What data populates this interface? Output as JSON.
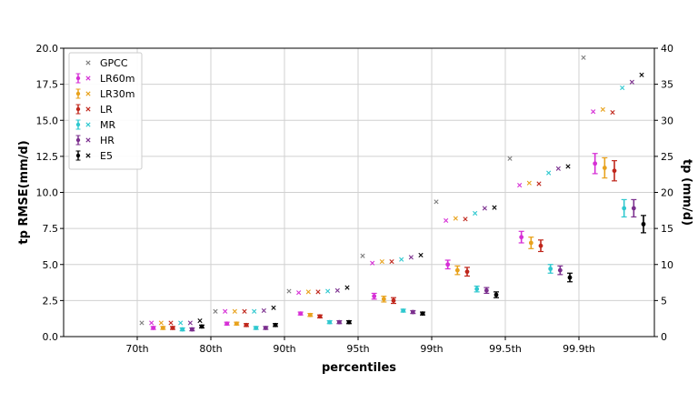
{
  "chart_data": {
    "type": "scatter",
    "xlabel": "percentiles",
    "ylabel_left": "tp RMSE(mm/d)",
    "ylabel_right": "tp (mm/d)",
    "categories": [
      "70th",
      "80th",
      "90th",
      "95th",
      "99th",
      "99.5th",
      "99.9th"
    ],
    "ylim_left": [
      0,
      20
    ],
    "ylim_right": [
      0,
      40
    ],
    "yticks_left": [
      "0.0",
      "2.5",
      "5.0",
      "7.5",
      "10.0",
      "12.5",
      "15.0",
      "17.5",
      "20.0"
    ],
    "yticks_right": [
      "0",
      "5",
      "10",
      "15",
      "20",
      "25",
      "30",
      "35",
      "40"
    ],
    "grid": true,
    "legend_position": "top-left",
    "series": [
      {
        "name": "GPCC",
        "color": "#7f7f7f",
        "axis": "right",
        "climatology": [
          1.9,
          3.5,
          6.3,
          11.2,
          18.7,
          24.7,
          38.7
        ]
      },
      {
        "name": "LR60m",
        "color": "#d62fd6",
        "rmse": [
          0.6,
          0.9,
          1.6,
          2.8,
          5.0,
          6.9,
          12.0
        ],
        "rmse_err": [
          0.1,
          0.1,
          0.1,
          0.2,
          0.3,
          0.4,
          0.7
        ],
        "climatology": [
          1.9,
          3.5,
          6.1,
          10.2,
          16.1,
          21.0,
          31.2
        ]
      },
      {
        "name": "LR30m",
        "color": "#e8a21c",
        "rmse": [
          0.6,
          0.9,
          1.5,
          2.6,
          4.6,
          6.5,
          11.7
        ],
        "rmse_err": [
          0.1,
          0.1,
          0.1,
          0.2,
          0.3,
          0.4,
          0.7
        ],
        "climatology": [
          1.9,
          3.5,
          6.2,
          10.4,
          16.4,
          21.3,
          31.5
        ]
      },
      {
        "name": "LR",
        "color": "#c0271c",
        "rmse": [
          0.6,
          0.8,
          1.4,
          2.5,
          4.5,
          6.3,
          11.5
        ],
        "rmse_err": [
          0.1,
          0.1,
          0.1,
          0.2,
          0.3,
          0.4,
          0.7
        ],
        "climatology": [
          1.9,
          3.5,
          6.2,
          10.4,
          16.3,
          21.2,
          31.1
        ]
      },
      {
        "name": "MR",
        "color": "#2fc8cf",
        "rmse": [
          0.5,
          0.6,
          1.0,
          1.8,
          3.3,
          4.7,
          8.9
        ],
        "rmse_err": [
          0.1,
          0.1,
          0.1,
          0.1,
          0.2,
          0.3,
          0.6
        ],
        "climatology": [
          1.9,
          3.5,
          6.3,
          10.7,
          17.1,
          22.7,
          34.5
        ]
      },
      {
        "name": "HR",
        "color": "#7b2f8e",
        "rmse": [
          0.5,
          0.6,
          1.0,
          1.7,
          3.2,
          4.6,
          8.9
        ],
        "rmse_err": [
          0.1,
          0.1,
          0.1,
          0.1,
          0.2,
          0.3,
          0.6
        ],
        "climatology": [
          1.9,
          3.6,
          6.4,
          11.0,
          17.8,
          23.3,
          35.3
        ]
      },
      {
        "name": "E5",
        "color": "#000000",
        "rmse": [
          0.7,
          0.8,
          1.0,
          1.6,
          2.9,
          4.1,
          7.8
        ],
        "rmse_err": [
          0.1,
          0.1,
          0.1,
          0.1,
          0.2,
          0.3,
          0.6
        ],
        "climatology": [
          2.2,
          4.0,
          6.8,
          11.3,
          17.9,
          23.6,
          36.3
        ]
      }
    ]
  }
}
